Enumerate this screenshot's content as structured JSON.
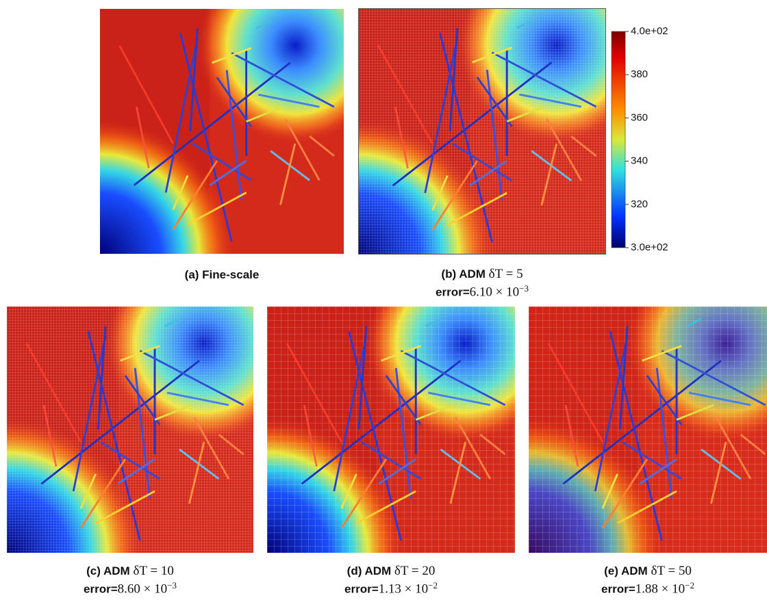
{
  "figure": {
    "colorbar": {
      "lim": [
        300,
        400
      ],
      "ticks": [
        {
          "value": 400,
          "label": "4.0e+02"
        },
        380,
        360,
        340,
        320,
        {
          "value": 300,
          "label": "3.0e+02"
        }
      ]
    },
    "panels": [
      {
        "label": "(a) Fine-scale"
      },
      {
        "label": "(b) ADM",
        "param": "δT = 5",
        "error": {
          "prefix": "error=",
          "value": "6.10 × 10",
          "exponent": "−3"
        }
      },
      {
        "label": "(c) ADM",
        "param": "δT = 10",
        "error": {
          "prefix": "error=",
          "value": "8.60 × 10",
          "exponent": "−3"
        }
      },
      {
        "label": "(d) ADM",
        "param": "δT = 20",
        "error": {
          "prefix": "error=",
          "value": "1.13 × 10",
          "exponent": "−2"
        }
      },
      {
        "label": "(e) ADM",
        "param": "δT = 50",
        "error": {
          "prefix": "error=",
          "value": "1.88 × 10",
          "exponent": "−2"
        }
      }
    ]
  }
}
